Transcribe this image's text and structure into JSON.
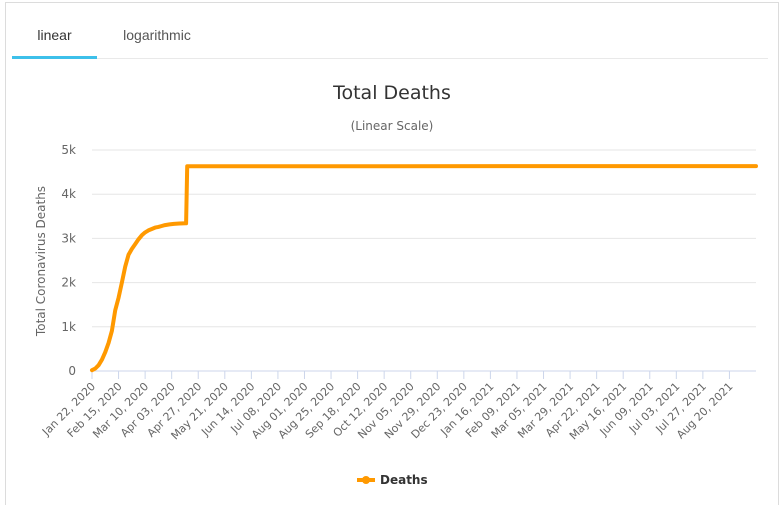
{
  "tabs": [
    {
      "label": "linear",
      "active": true
    },
    {
      "label": "logarithmic",
      "active": false
    }
  ],
  "colors": {
    "accent": "#3dc0ea",
    "series": "#ff9900",
    "grid": "#e6e6e6"
  },
  "chart_data": {
    "type": "line",
    "title": "Total Deaths",
    "subtitle": "(Linear Scale)",
    "ylabel": "Total Coronavirus Deaths",
    "xlabel": "",
    "ylim": [
      0,
      5000
    ],
    "yticks": [
      0,
      1000,
      2000,
      3000,
      4000,
      5000
    ],
    "ytick_labels": [
      "0",
      "1k",
      "2k",
      "3k",
      "4k",
      "5k"
    ],
    "x_tick_labels": [
      "Jan 22, 2020",
      "Feb 15, 2020",
      "Mar 10, 2020",
      "Apr 03, 2020",
      "Apr 27, 2020",
      "May 21, 2020",
      "Jun 14, 2020",
      "Jul 08, 2020",
      "Aug 01, 2020",
      "Aug 25, 2020",
      "Sep 18, 2020",
      "Oct 12, 2020",
      "Nov 05, 2020",
      "Nov 29, 2020",
      "Dec 23, 2020",
      "Jan 16, 2021",
      "Feb 09, 2021",
      "Mar 05, 2021",
      "Mar 29, 2021",
      "Apr 22, 2021",
      "May 16, 2021",
      "Jun 09, 2021",
      "Jul 03, 2021",
      "Jul 27, 2021",
      "Aug 20, 2021"
    ],
    "x_range": [
      "Jan 22, 2020",
      "Sep 13, 2021"
    ],
    "legend_position": "bottom-center",
    "grid": true,
    "series": [
      {
        "name": "Deaths",
        "color": "#ff9900",
        "points": [
          [
            "Jan 22, 2020",
            17
          ],
          [
            "Jan 25, 2020",
            56
          ],
          [
            "Jan 28, 2020",
            132
          ],
          [
            "Jan 31, 2020",
            259
          ],
          [
            "Feb 03, 2020",
            427
          ],
          [
            "Feb 06, 2020",
            638
          ],
          [
            "Feb 09, 2020",
            910
          ],
          [
            "Feb 12, 2020",
            1370
          ],
          [
            "Feb 15, 2020",
            1660
          ],
          [
            "Feb 18, 2020",
            2004
          ],
          [
            "Feb 21, 2020",
            2360
          ],
          [
            "Feb 24, 2020",
            2630
          ],
          [
            "Feb 27, 2020",
            2760
          ],
          [
            "Mar 01, 2020",
            2870
          ],
          [
            "Mar 04, 2020",
            2980
          ],
          [
            "Mar 07, 2020",
            3070
          ],
          [
            "Mar 10, 2020",
            3136
          ],
          [
            "Mar 13, 2020",
            3180
          ],
          [
            "Mar 16, 2020",
            3213
          ],
          [
            "Mar 19, 2020",
            3245
          ],
          [
            "Mar 22, 2020",
            3261
          ],
          [
            "Mar 25, 2020",
            3281
          ],
          [
            "Mar 28, 2020",
            3300
          ],
          [
            "Apr 01, 2020",
            3316
          ],
          [
            "Apr 05, 2020",
            3329
          ],
          [
            "Apr 10, 2020",
            3336
          ],
          [
            "Apr 16, 2020",
            3342
          ],
          [
            "Apr 17, 2020",
            4632
          ],
          [
            "Sep 13, 2021",
            4636
          ]
        ]
      }
    ]
  }
}
